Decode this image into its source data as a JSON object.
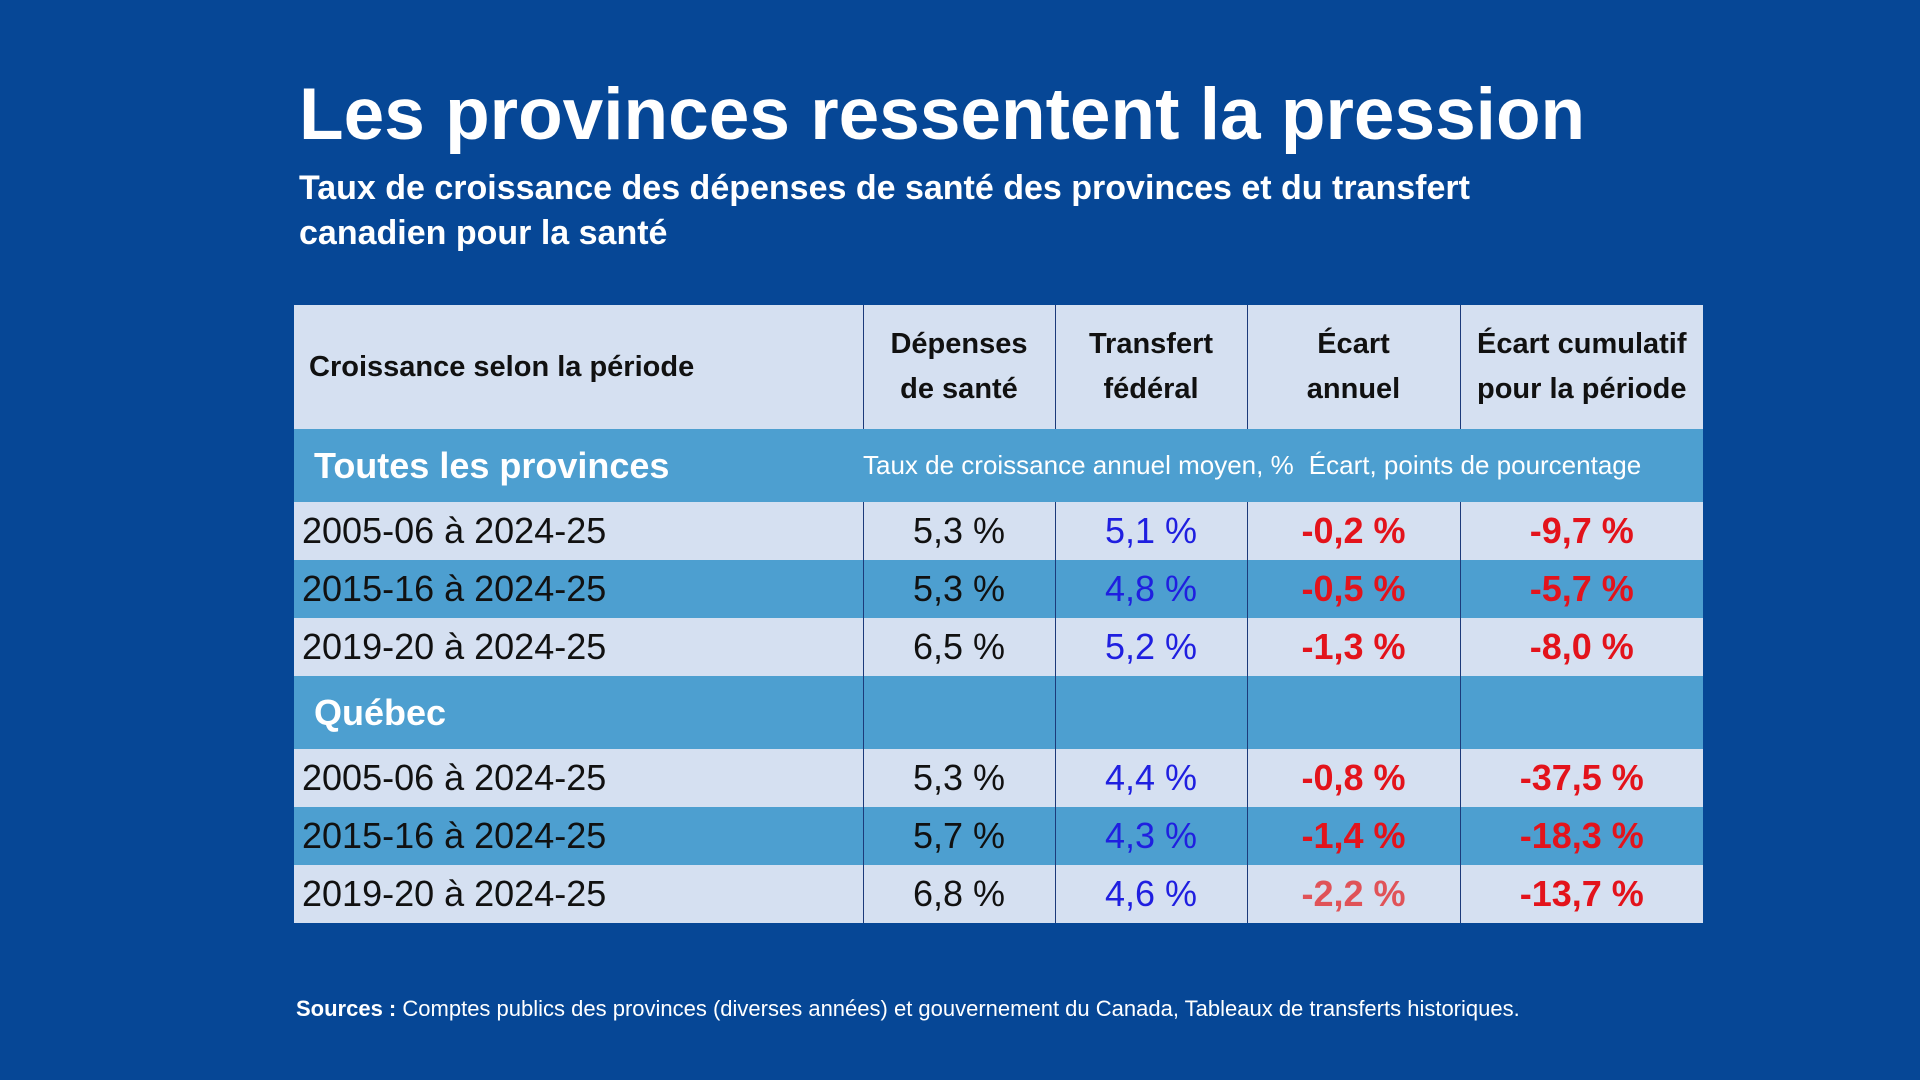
{
  "title": "Les provinces ressentent la pression",
  "subtitle": "Taux de croissance des dépenses de santé des provinces et du transfert canadien pour la santé",
  "chart_data": {
    "type": "table",
    "title": "Les provinces ressentent la pression",
    "subtitle": "Taux de croissance des dépenses de santé des provinces et du transfert canadien pour la santé",
    "columns": {
      "period": "Croissance selon la période",
      "depenses_line1": "Dépenses",
      "depenses_line2": "de santé",
      "transfert_line1": "Transfert",
      "transfert_line2": "fédéral",
      "ecart_line1": "Écart",
      "ecart_line2": "annuel",
      "cumul_line1": "Écart cumulatif",
      "cumul_line2": "pour la période"
    },
    "unit_labels": {
      "growth": "Taux de croissance annuel moyen, %",
      "gap": "Écart, points de pourcentage"
    },
    "sections": [
      {
        "name": "Toutes les provinces",
        "rows": [
          {
            "period": "2005-06 à 2024-25",
            "depenses": "5,3 %",
            "transfert": "5,1 %",
            "ecart": "-0,2 %",
            "cumul": "-9,7 %"
          },
          {
            "period": "2015-16 à 2024-25",
            "depenses": "5,3 %",
            "transfert": "4,8 %",
            "ecart": "-0,5 %",
            "cumul": "-5,7 %"
          },
          {
            "period": "2019-20 à 2024-25",
            "depenses": "6,5 %",
            "transfert": "5,2 %",
            "ecart": "-1,3 %",
            "cumul": "-8,0 %"
          }
        ]
      },
      {
        "name": "Québec",
        "rows": [
          {
            "period": "2005-06 à 2024-25",
            "depenses": "5,3 %",
            "transfert": "4,4 %",
            "ecart": "-0,8 %",
            "cumul": "-37,5 %"
          },
          {
            "period": "2015-16 à 2024-25",
            "depenses": "5,7 %",
            "transfert": "4,3 %",
            "ecart": "-1,4 %",
            "cumul": "-18,3 %"
          },
          {
            "period": "2019-20 à 2024-25",
            "depenses": "6,8 %",
            "transfert": "4,6 %",
            "ecart": "-2,2 %",
            "cumul": "-13,7 %"
          }
        ]
      }
    ]
  },
  "sources": {
    "label": "Sources :",
    "text": "Comptes publics des provinces (diverses années) et gouvernement du Canada, Tableaux de transferts historiques."
  },
  "colors": {
    "background": "#064796",
    "header_row": "#d5e0f1",
    "section_row": "#4d9fd0",
    "transfer_text": "#1f1fe0",
    "negative_text": "#e3131b"
  }
}
